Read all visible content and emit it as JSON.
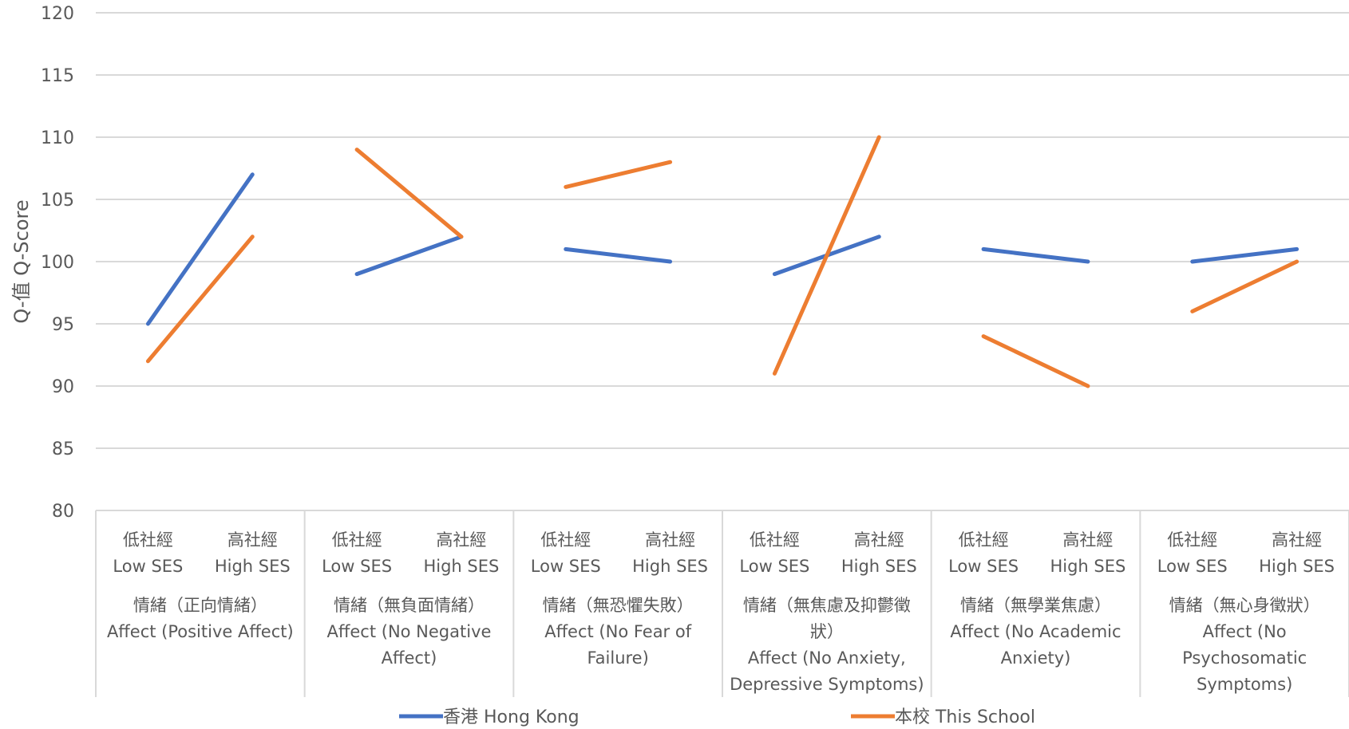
{
  "chart_data": {
    "type": "line",
    "ylabel": "Q-值 Q-Score",
    "ylim": [
      80,
      120
    ],
    "y_ticks": [
      80,
      85,
      90,
      95,
      100,
      105,
      110,
      115,
      120
    ],
    "grid": true,
    "legend_position": "bottom",
    "colors": {
      "hong_kong": "#4472C4",
      "this_school": "#ED7D31"
    },
    "categories": [
      "Low SES",
      "High SES"
    ],
    "category_labels": {
      "low": [
        "低社經",
        "Low SES"
      ],
      "high": [
        "高社經",
        "High SES"
      ]
    },
    "groups": [
      {
        "lines": [
          "情緒（正向情緒）",
          "Affect (Positive Affect)"
        ]
      },
      {
        "lines": [
          "情緒（無負面情緒）",
          "Affect (No Negative",
          "Affect)"
        ]
      },
      {
        "lines": [
          "情緒（無恐懼失敗）",
          "Affect (No Fear of",
          "Failure)"
        ]
      },
      {
        "lines": [
          "情緒（無焦慮及抑鬱徵",
          "狀）",
          "Affect (No Anxiety,",
          "Depressive Symptoms)"
        ]
      },
      {
        "lines": [
          "情緒（無學業焦慮）",
          "Affect (No Academic",
          "Anxiety)"
        ]
      },
      {
        "lines": [
          "情緒（無心身徵狀）",
          "Affect (No",
          "Psychosomatic",
          "Symptoms)"
        ]
      }
    ],
    "series": [
      {
        "name": "香港 Hong Kong",
        "color": "#4472C4",
        "values": [
          [
            95,
            107
          ],
          [
            99,
            102
          ],
          [
            101,
            100
          ],
          [
            99,
            102
          ],
          [
            101,
            100
          ],
          [
            100,
            101
          ]
        ]
      },
      {
        "name": "本校 This School",
        "color": "#ED7D31",
        "values": [
          [
            92,
            102
          ],
          [
            109,
            102
          ],
          [
            106,
            108
          ],
          [
            91,
            110
          ],
          [
            94,
            90
          ],
          [
            96,
            100
          ]
        ]
      }
    ]
  }
}
